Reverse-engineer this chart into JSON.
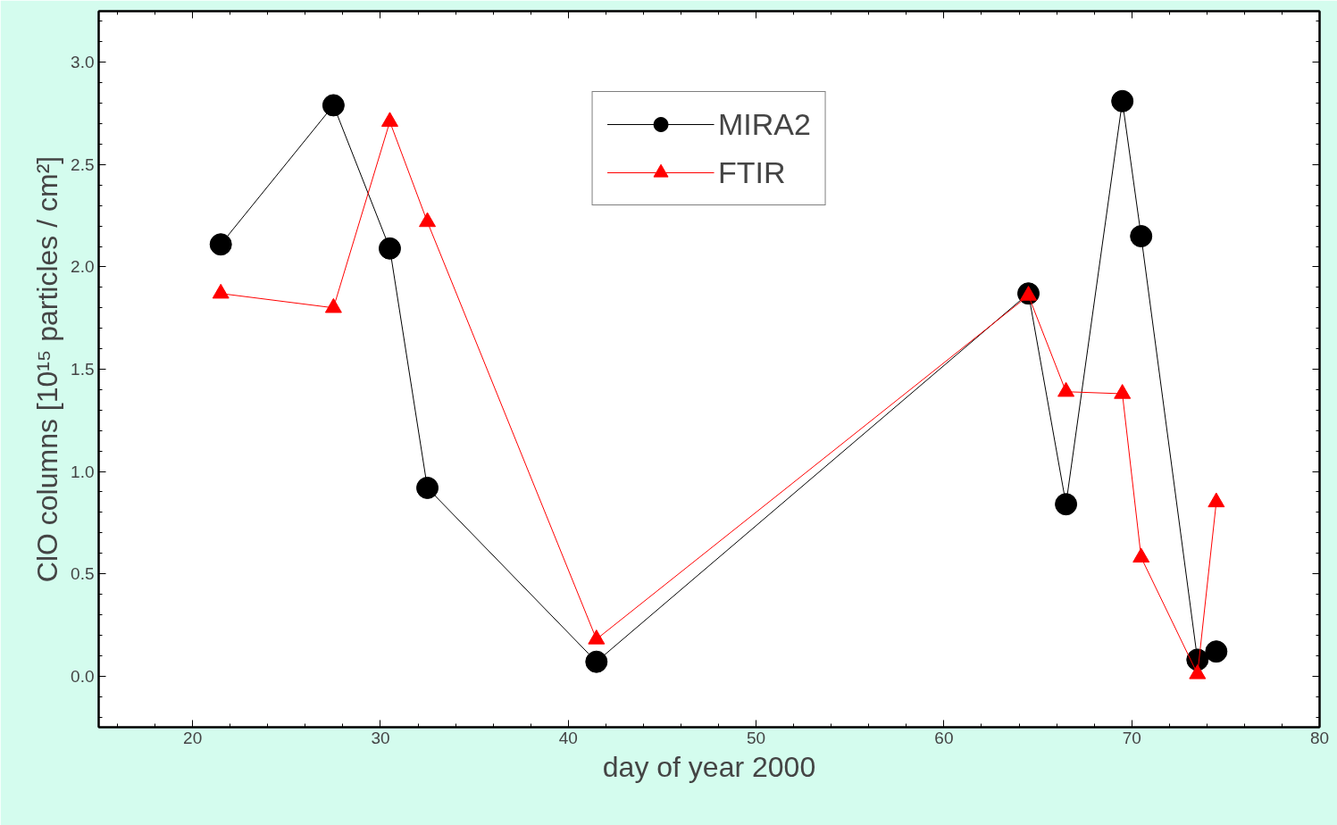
{
  "chart_data": {
    "type": "line",
    "xlabel": "day of year 2000",
    "ylabel": "ClO columns [10¹⁵ particles / cm²]",
    "x": [
      21.5,
      27.5,
      30.5,
      32.5,
      41.5,
      64.5,
      66.5,
      69.5,
      70.5,
      73.5,
      74.5
    ],
    "series": [
      {
        "name": "MIRA2",
        "color": "#000000",
        "marker": "circle",
        "values": [
          2.11,
          2.79,
          2.09,
          0.92,
          0.07,
          1.87,
          0.84,
          2.81,
          2.15,
          0.08,
          0.12
        ]
      },
      {
        "name": "FTIR",
        "color": "#ff0000",
        "marker": "triangle",
        "values": [
          1.87,
          1.8,
          2.71,
          2.22,
          0.18,
          1.86,
          1.39,
          1.38,
          0.58,
          0.01,
          0.85
        ]
      }
    ],
    "xlim": [
      15,
      80
    ],
    "ylim": [
      -0.25,
      3.25
    ],
    "xticks": [
      20,
      30,
      40,
      50,
      60,
      70,
      80
    ],
    "yticks": [
      {
        "value": 0,
        "label": "0.0"
      },
      {
        "value": 0.5,
        "label": "0.5"
      },
      {
        "value": 1,
        "label": "1.0"
      },
      {
        "value": 1.5,
        "label": "1.5"
      },
      {
        "value": 2,
        "label": "2.0"
      },
      {
        "value": 2.5,
        "label": "2.5"
      },
      {
        "value": 3,
        "label": "3.0"
      }
    ],
    "grid": false,
    "legend": "top",
    "line_style": "solid"
  }
}
